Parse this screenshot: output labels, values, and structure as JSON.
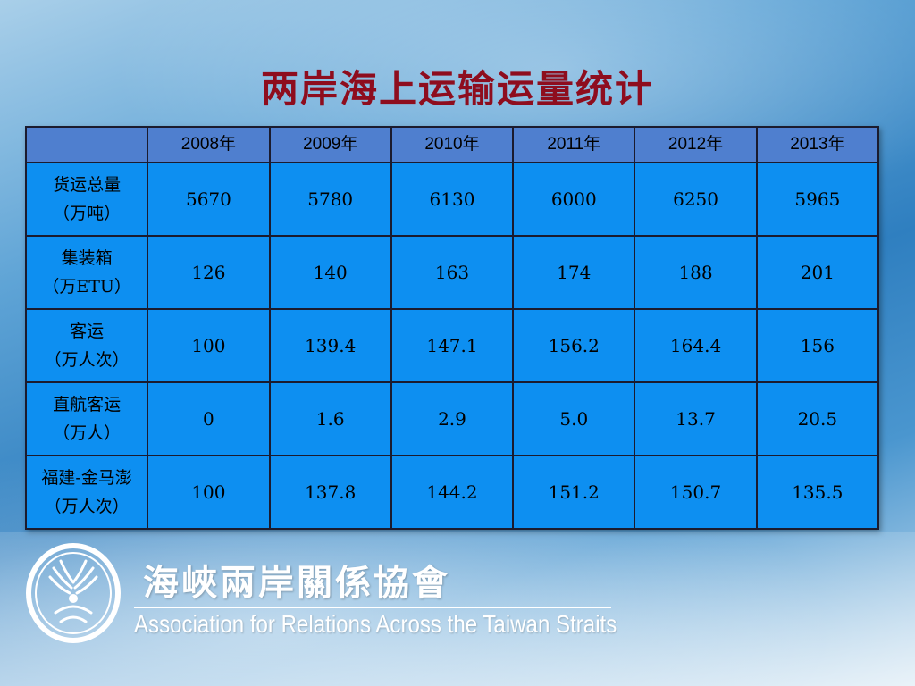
{
  "slide": {
    "title": "两岸海上运输运量统计"
  },
  "table": {
    "corner": "",
    "years": [
      "2008年",
      "2009年",
      "2010年",
      "2011年",
      "2012年",
      "2013年"
    ],
    "rows": [
      {
        "label_line1": "货运总量",
        "label_line2": "（万吨）",
        "values": [
          "5670",
          "5780",
          "6130",
          "6000",
          "6250",
          "5965"
        ]
      },
      {
        "label_line1": "集装箱",
        "label_line2": "（万ETU）",
        "values": [
          "126",
          "140",
          "163",
          "174",
          "188",
          "201"
        ]
      },
      {
        "label_line1": "客运",
        "label_line2": "（万人次）",
        "values": [
          "100",
          "139.4",
          "147.1",
          "156.2",
          "164.4",
          "156"
        ]
      },
      {
        "label_line1": "直航客运",
        "label_line2": "（万人）",
        "values": [
          "0",
          "1.6",
          "2.9",
          "5.0",
          "13.7",
          "20.5"
        ]
      },
      {
        "label_line1": "福建-金马澎",
        "label_line2": "（万人次）",
        "values": [
          "100",
          "137.8",
          "144.2",
          "151.2",
          "150.7",
          "135.5"
        ]
      }
    ]
  },
  "footer": {
    "org_name_cn": "海峽兩岸關係協會",
    "org_name_en": "Association for Relations Across the Taiwan Straits",
    "logo_icon": "arats-crane-logo-icon"
  },
  "colors": {
    "title": "#8e0d1e",
    "header_cell": "#4f7fcf",
    "body_cell": "#0d8ff1",
    "grid": "#1b1b2e"
  }
}
